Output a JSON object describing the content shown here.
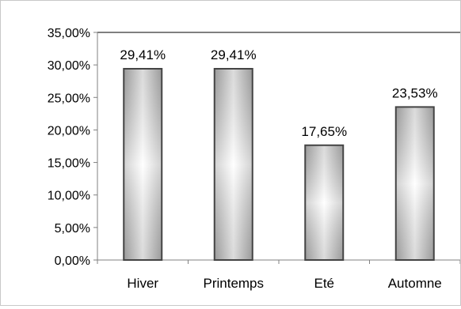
{
  "chart_data": {
    "type": "bar",
    "categories": [
      "Hiver",
      "Printemps",
      "Eté",
      "Automne"
    ],
    "values": [
      29.41,
      29.41,
      17.65,
      23.53
    ],
    "data_labels": [
      "29,41%",
      "29,41%",
      "17,65%",
      "23,53%"
    ],
    "y_ticks": [
      0,
      5,
      10,
      15,
      20,
      25,
      30,
      35
    ],
    "y_tick_labels": [
      "0,00%",
      "5,00%",
      "10,00%",
      "15,00%",
      "20,00%",
      "25,00%",
      "30,00%",
      "35,00%"
    ],
    "ylim": [
      0,
      35
    ],
    "title": "",
    "xlabel": "",
    "ylabel": "",
    "grid": false,
    "legend": "none",
    "bar_style": "gray gradient with light center",
    "colors": {
      "bar_edge": "#444444",
      "bar_dark": "#9a9a9a",
      "bar_light": "#ffffff",
      "axis": "#808080",
      "text": "#000000"
    }
  }
}
